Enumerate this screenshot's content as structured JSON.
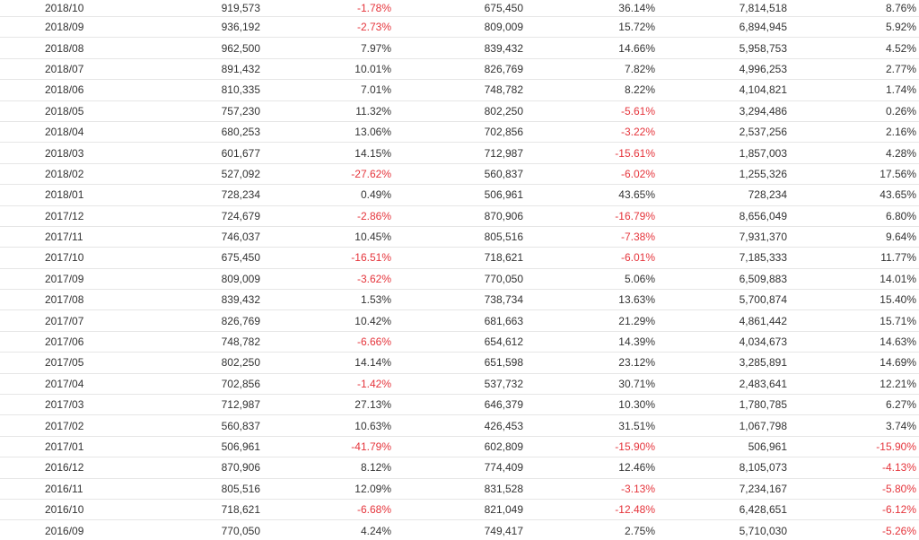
{
  "colors": {
    "negative": "#e5343b",
    "text": "#333333",
    "divider": "#e6e6e6"
  },
  "rows": [
    {
      "month": "2018/10",
      "v1": "919,573",
      "p1": "-1.78%",
      "v2": "675,450",
      "p2": "36.14%",
      "v3": "7,814,518",
      "p3": "8.76%"
    },
    {
      "month": "2018/09",
      "v1": "936,192",
      "p1": "-2.73%",
      "v2": "809,009",
      "p2": "15.72%",
      "v3": "6,894,945",
      "p3": "5.92%"
    },
    {
      "month": "2018/08",
      "v1": "962,500",
      "p1": "7.97%",
      "v2": "839,432",
      "p2": "14.66%",
      "v3": "5,958,753",
      "p3": "4.52%"
    },
    {
      "month": "2018/07",
      "v1": "891,432",
      "p1": "10.01%",
      "v2": "826,769",
      "p2": "7.82%",
      "v3": "4,996,253",
      "p3": "2.77%"
    },
    {
      "month": "2018/06",
      "v1": "810,335",
      "p1": "7.01%",
      "v2": "748,782",
      "p2": "8.22%",
      "v3": "4,104,821",
      "p3": "1.74%"
    },
    {
      "month": "2018/05",
      "v1": "757,230",
      "p1": "11.32%",
      "v2": "802,250",
      "p2": "-5.61%",
      "v3": "3,294,486",
      "p3": "0.26%"
    },
    {
      "month": "2018/04",
      "v1": "680,253",
      "p1": "13.06%",
      "v2": "702,856",
      "p2": "-3.22%",
      "v3": "2,537,256",
      "p3": "2.16%"
    },
    {
      "month": "2018/03",
      "v1": "601,677",
      "p1": "14.15%",
      "v2": "712,987",
      "p2": "-15.61%",
      "v3": "1,857,003",
      "p3": "4.28%"
    },
    {
      "month": "2018/02",
      "v1": "527,092",
      "p1": "-27.62%",
      "v2": "560,837",
      "p2": "-6.02%",
      "v3": "1,255,326",
      "p3": "17.56%"
    },
    {
      "month": "2018/01",
      "v1": "728,234",
      "p1": "0.49%",
      "v2": "506,961",
      "p2": "43.65%",
      "v3": "728,234",
      "p3": "43.65%"
    },
    {
      "month": "2017/12",
      "v1": "724,679",
      "p1": "-2.86%",
      "v2": "870,906",
      "p2": "-16.79%",
      "v3": "8,656,049",
      "p3": "6.80%"
    },
    {
      "month": "2017/11",
      "v1": "746,037",
      "p1": "10.45%",
      "v2": "805,516",
      "p2": "-7.38%",
      "v3": "7,931,370",
      "p3": "9.64%"
    },
    {
      "month": "2017/10",
      "v1": "675,450",
      "p1": "-16.51%",
      "v2": "718,621",
      "p2": "-6.01%",
      "v3": "7,185,333",
      "p3": "11.77%"
    },
    {
      "month": "2017/09",
      "v1": "809,009",
      "p1": "-3.62%",
      "v2": "770,050",
      "p2": "5.06%",
      "v3": "6,509,883",
      "p3": "14.01%"
    },
    {
      "month": "2017/08",
      "v1": "839,432",
      "p1": "1.53%",
      "v2": "738,734",
      "p2": "13.63%",
      "v3": "5,700,874",
      "p3": "15.40%"
    },
    {
      "month": "2017/07",
      "v1": "826,769",
      "p1": "10.42%",
      "v2": "681,663",
      "p2": "21.29%",
      "v3": "4,861,442",
      "p3": "15.71%"
    },
    {
      "month": "2017/06",
      "v1": "748,782",
      "p1": "-6.66%",
      "v2": "654,612",
      "p2": "14.39%",
      "v3": "4,034,673",
      "p3": "14.63%"
    },
    {
      "month": "2017/05",
      "v1": "802,250",
      "p1": "14.14%",
      "v2": "651,598",
      "p2": "23.12%",
      "v3": "3,285,891",
      "p3": "14.69%"
    },
    {
      "month": "2017/04",
      "v1": "702,856",
      "p1": "-1.42%",
      "v2": "537,732",
      "p2": "30.71%",
      "v3": "2,483,641",
      "p3": "12.21%"
    },
    {
      "month": "2017/03",
      "v1": "712,987",
      "p1": "27.13%",
      "v2": "646,379",
      "p2": "10.30%",
      "v3": "1,780,785",
      "p3": "6.27%"
    },
    {
      "month": "2017/02",
      "v1": "560,837",
      "p1": "10.63%",
      "v2": "426,453",
      "p2": "31.51%",
      "v3": "1,067,798",
      "p3": "3.74%"
    },
    {
      "month": "2017/01",
      "v1": "506,961",
      "p1": "-41.79%",
      "v2": "602,809",
      "p2": "-15.90%",
      "v3": "506,961",
      "p3": "-15.90%"
    },
    {
      "month": "2016/12",
      "v1": "870,906",
      "p1": "8.12%",
      "v2": "774,409",
      "p2": "12.46%",
      "v3": "8,105,073",
      "p3": "-4.13%"
    },
    {
      "month": "2016/11",
      "v1": "805,516",
      "p1": "12.09%",
      "v2": "831,528",
      "p2": "-3.13%",
      "v3": "7,234,167",
      "p3": "-5.80%"
    },
    {
      "month": "2016/10",
      "v1": "718,621",
      "p1": "-6.68%",
      "v2": "821,049",
      "p2": "-12.48%",
      "v3": "6,428,651",
      "p3": "-6.12%"
    },
    {
      "month": "2016/09",
      "v1": "770,050",
      "p1": "4.24%",
      "v2": "749,417",
      "p2": "2.75%",
      "v3": "5,710,030",
      "p3": "-5.26%"
    }
  ]
}
